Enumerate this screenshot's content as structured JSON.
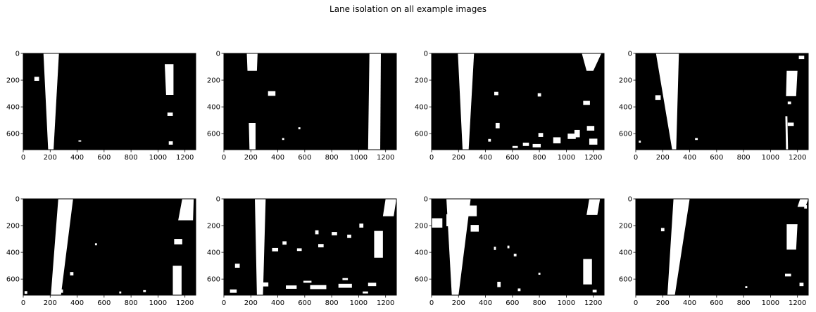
{
  "figure": {
    "title": "Lane isolation on all example images"
  },
  "chart_data": [
    {
      "type": "image",
      "xlim": [
        0,
        1280
      ],
      "ylim": [
        720,
        0
      ],
      "xticks": [
        0,
        200,
        400,
        600,
        800,
        1000,
        1200
      ],
      "yticks": [
        0,
        200,
        400,
        600
      ],
      "background": "#000000",
      "foreground": "#ffffff",
      "lanes": [
        {
          "top": [
            150,
            265
          ],
          "bottom": [
            185,
            225
          ]
        },
        {
          "top": [
            1050,
            1115
          ],
          "bottom": [
            1060,
            1115
          ],
          "y": [
            80,
            310
          ]
        }
      ],
      "blobs": [
        [
          1090,
          455,
          40,
          25
        ],
        [
          1095,
          670,
          30,
          25
        ],
        [
          420,
          655,
          20,
          10
        ],
        [
          100,
          190,
          35,
          30
        ]
      ]
    },
    {
      "type": "image",
      "xlim": [
        0,
        1280
      ],
      "ylim": [
        720,
        0
      ],
      "xticks": [
        0,
        200,
        400,
        600,
        800,
        1000,
        1200
      ],
      "yticks": [
        0,
        200,
        400,
        600
      ],
      "background": "#000000",
      "foreground": "#ffffff",
      "lanes": [
        {
          "top": [
            170,
            250
          ],
          "bottom": [
            175,
            245
          ],
          "y": [
            0,
            130
          ]
        },
        {
          "top": [
            1080,
            1165
          ],
          "bottom": [
            1070,
            1160
          ]
        },
        {
          "top": [
            185,
            235
          ],
          "bottom": [
            190,
            235
          ],
          "y": [
            520,
            720
          ]
        }
      ],
      "blobs": [
        [
          355,
          300,
          55,
          35
        ],
        [
          560,
          560,
          15,
          15
        ],
        [
          440,
          640,
          15,
          15
        ]
      ]
    },
    {
      "type": "image",
      "xlim": [
        0,
        1280
      ],
      "ylim": [
        720,
        0
      ],
      "xticks": [
        0,
        200,
        400,
        600,
        800,
        1000,
        1200
      ],
      "yticks": [
        0,
        200,
        400,
        600
      ],
      "background": "#000000",
      "foreground": "#ffffff",
      "lanes": [
        {
          "top": [
            195,
            315
          ],
          "bottom": [
            230,
            275
          ]
        },
        {
          "top": [
            1115,
            1260
          ],
          "bottom": [
            1150,
            1200
          ],
          "y": [
            0,
            130
          ]
        }
      ],
      "blobs": [
        [
          480,
          300,
          30,
          25
        ],
        [
          800,
          310,
          25,
          25
        ],
        [
          1150,
          370,
          50,
          30
        ],
        [
          490,
          540,
          30,
          40
        ],
        [
          810,
          610,
          35,
          30
        ],
        [
          930,
          650,
          55,
          45
        ],
        [
          1040,
          620,
          60,
          40
        ],
        [
          1180,
          560,
          55,
          35
        ],
        [
          1200,
          660,
          60,
          45
        ],
        [
          700,
          680,
          45,
          25
        ],
        [
          780,
          690,
          60,
          25
        ],
        [
          1080,
          600,
          40,
          55
        ],
        [
          620,
          700,
          40,
          15
        ],
        [
          430,
          650,
          20,
          20
        ]
      ]
    },
    {
      "type": "image",
      "xlim": [
        0,
        1280
      ],
      "ylim": [
        720,
        0
      ],
      "xticks": [
        0,
        200,
        400,
        600,
        800,
        1000,
        1200
      ],
      "yticks": [
        0,
        200,
        400,
        600
      ],
      "background": "#000000",
      "foreground": "#ffffff",
      "lanes": [
        {
          "top": [
            150,
            320
          ],
          "bottom": [
            270,
            300
          ]
        },
        {
          "top": [
            1120,
            1200
          ],
          "bottom": [
            1115,
            1190
          ],
          "y": [
            130,
            320
          ]
        },
        {
          "top": [
            1110,
            1125
          ],
          "bottom": [
            1115,
            1130
          ],
          "y": [
            470,
            720
          ]
        }
      ],
      "blobs": [
        [
          165,
          330,
          40,
          35
        ],
        [
          1150,
          530,
          45,
          25
        ],
        [
          1230,
          30,
          40,
          25
        ],
        [
          1140,
          370,
          25,
          20
        ],
        [
          450,
          640,
          20,
          15
        ],
        [
          30,
          660,
          15,
          15
        ]
      ]
    },
    {
      "type": "image",
      "xlim": [
        0,
        1280
      ],
      "ylim": [
        720,
        0
      ],
      "xticks": [
        0,
        200,
        400,
        600,
        800,
        1000,
        1200
      ],
      "yticks": [
        0,
        200,
        400,
        600
      ],
      "background": "#000000",
      "foreground": "#ffffff",
      "lanes": [
        {
          "top": [
            260,
            370
          ],
          "bottom": [
            205,
            280
          ]
        },
        {
          "top": [
            1180,
            1265
          ],
          "bottom": [
            1150,
            1260
          ],
          "y": [
            0,
            160
          ]
        },
        {
          "top": [
            1110,
            1175
          ],
          "bottom": [
            1110,
            1175
          ],
          "y": [
            500,
            720
          ]
        }
      ],
      "blobs": [
        [
          1150,
          320,
          60,
          40
        ],
        [
          540,
          340,
          15,
          15
        ],
        [
          360,
          560,
          25,
          25
        ],
        [
          20,
          700,
          20,
          20
        ],
        [
          280,
          690,
          30,
          25
        ],
        [
          900,
          690,
          20,
          15
        ],
        [
          720,
          700,
          15,
          15
        ]
      ]
    },
    {
      "type": "image",
      "xlim": [
        0,
        1280
      ],
      "ylim": [
        720,
        0
      ],
      "xticks": [
        0,
        200,
        400,
        600,
        800,
        1000,
        1200
      ],
      "yticks": [
        0,
        200,
        400,
        600
      ],
      "background": "#000000",
      "foreground": "#ffffff",
      "lanes": [
        {
          "top": [
            230,
            310
          ],
          "bottom": [
            245,
            290
          ]
        },
        {
          "top": [
            1115,
            1180
          ],
          "bottom": [
            1115,
            1180
          ],
          "y": [
            240,
            440
          ]
        },
        {
          "top": [
            1200,
            1280
          ],
          "bottom": [
            1180,
            1260
          ],
          "y": [
            0,
            130
          ]
        }
      ],
      "blobs": [
        [
          450,
          330,
          30,
          25
        ],
        [
          690,
          250,
          25,
          30
        ],
        [
          820,
          260,
          40,
          25
        ],
        [
          930,
          280,
          30,
          25
        ],
        [
          1020,
          200,
          30,
          30
        ],
        [
          380,
          380,
          45,
          25
        ],
        [
          560,
          380,
          35,
          20
        ],
        [
          720,
          350,
          40,
          25
        ],
        [
          100,
          500,
          35,
          30
        ],
        [
          300,
          640,
          60,
          30
        ],
        [
          500,
          660,
          80,
          25
        ],
        [
          700,
          660,
          120,
          30
        ],
        [
          900,
          650,
          100,
          30
        ],
        [
          1100,
          640,
          60,
          25
        ],
        [
          70,
          690,
          50,
          25
        ],
        [
          1050,
          700,
          40,
          15
        ],
        [
          620,
          620,
          60,
          15
        ],
        [
          900,
          600,
          40,
          15
        ]
      ]
    },
    {
      "type": "image",
      "xlim": [
        0,
        1280
      ],
      "ylim": [
        720,
        0
      ],
      "xticks": [
        0,
        200,
        400,
        600,
        800,
        1000,
        1200
      ],
      "yticks": [
        0,
        200,
        400,
        600
      ],
      "background": "#000000",
      "foreground": "#ffffff",
      "lanes": [
        {
          "top": [
            110,
            290
          ],
          "bottom": [
            150,
            200
          ]
        },
        {
          "top": [
            1170,
            1250
          ],
          "bottom": [
            1150,
            1230
          ],
          "y": [
            0,
            120
          ]
        },
        {
          "top": [
            1125,
            1190
          ],
          "bottom": [
            1125,
            1190
          ],
          "y": [
            450,
            640
          ]
        }
      ],
      "blobs": [
        [
          30,
          180,
          100,
          70
        ],
        [
          150,
          160,
          80,
          90
        ],
        [
          300,
          90,
          70,
          80
        ],
        [
          320,
          220,
          60,
          50
        ],
        [
          470,
          370,
          15,
          25
        ],
        [
          570,
          360,
          15,
          20
        ],
        [
          620,
          420,
          20,
          20
        ],
        [
          800,
          560,
          15,
          15
        ],
        [
          500,
          640,
          25,
          40
        ],
        [
          650,
          680,
          20,
          20
        ],
        [
          1210,
          690,
          30,
          20
        ],
        [
          280,
          80,
          40,
          60
        ]
      ]
    },
    {
      "type": "image",
      "xlim": [
        0,
        1280
      ],
      "ylim": [
        720,
        0
      ],
      "xticks": [
        0,
        200,
        400,
        600,
        800,
        1000,
        1200
      ],
      "yticks": [
        0,
        200,
        400,
        600
      ],
      "background": "#000000",
      "foreground": "#ffffff",
      "lanes": [
        {
          "top": [
            280,
            400
          ],
          "bottom": [
            235,
            290
          ]
        },
        {
          "top": [
            1120,
            1200
          ],
          "bottom": [
            1120,
            1190
          ],
          "y": [
            190,
            380
          ]
        },
        {
          "top": [
            1220,
            1280
          ],
          "bottom": [
            1200,
            1260
          ],
          "y": [
            0,
            60
          ]
        }
      ],
      "blobs": [
        [
          200,
          230,
          25,
          25
        ],
        [
          1130,
          570,
          45,
          20
        ],
        [
          1260,
          60,
          20,
          25
        ],
        [
          1230,
          640,
          30,
          25
        ],
        [
          820,
          660,
          15,
          15
        ]
      ]
    }
  ]
}
